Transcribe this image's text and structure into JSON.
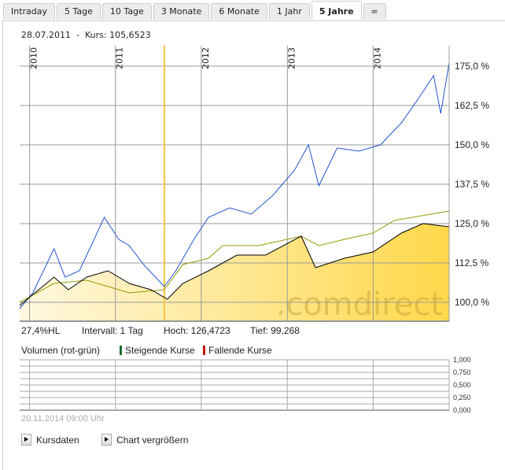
{
  "tabs": [
    {
      "label": "Intraday"
    },
    {
      "label": "5 Tage"
    },
    {
      "label": "10 Tage"
    },
    {
      "label": "3 Monate"
    },
    {
      "label": "6 Monate"
    },
    {
      "label": "1 Jahr"
    },
    {
      "label": "5 Jahre",
      "active": true
    },
    {
      "label": "∞"
    }
  ],
  "header": {
    "date": "28.07.2011",
    "separator": "-",
    "kurs_label": "Kurs:",
    "kurs_value": "105,6523"
  },
  "stats": {
    "hl": "27,4%HL",
    "interval": "Intervall: 1 Tag",
    "hoch": "Hoch: 126,4723",
    "tief": "Tief:  99,268"
  },
  "volume": {
    "title": "Volumen (rot-grün)",
    "rising": "Steigende Kurse",
    "falling": "Fallende Kurse",
    "rising_color": "#1a6e2e",
    "falling_color": "#cc1111",
    "ticks": [
      "1,000",
      "0,750",
      "0,500",
      "0,250",
      "0,000"
    ]
  },
  "timestamp": "20.11.2014 09:00 Uhr",
  "buttons": {
    "kursdaten": "Kursdaten",
    "vergroessern": "Chart vergrößern"
  },
  "watermark": ".comdirect",
  "chart_data": {
    "type": "line",
    "x_ticks": [
      "2010",
      "2011",
      "2012",
      "2013",
      "2014"
    ],
    "y_ticks": [
      "175,0 %",
      "162,5 %",
      "150,0 %",
      "137,5 %",
      "125,0 %",
      "112,5 %",
      "100,0 %"
    ],
    "ylim": [
      95,
      182
    ],
    "xlim": [
      "2009-11-20",
      "2014-11-20"
    ],
    "cursor_date": "2011-07-28",
    "grid": true,
    "series": [
      {
        "color": "#2255cc",
        "points": [
          [
            "2009-11-20",
            98
          ],
          [
            "2010-01-15",
            103
          ],
          [
            "2010-04-15",
            117
          ],
          [
            "2010-06-01",
            108
          ],
          [
            "2010-08-01",
            110
          ],
          [
            "2010-11-15",
            127
          ],
          [
            "2011-01-15",
            120
          ],
          [
            "2011-03-01",
            118
          ],
          [
            "2011-05-01",
            112
          ],
          [
            "2011-07-28",
            105
          ],
          [
            "2011-09-15",
            110
          ],
          [
            "2011-12-01",
            120
          ],
          [
            "2012-02-01",
            127
          ],
          [
            "2012-05-01",
            130
          ],
          [
            "2012-08-01",
            128
          ],
          [
            "2012-11-01",
            134
          ],
          [
            "2013-02-01",
            142
          ],
          [
            "2013-04-01",
            150
          ],
          [
            "2013-05-15",
            137
          ],
          [
            "2013-08-01",
            149
          ],
          [
            "2013-11-01",
            148
          ],
          [
            "2014-02-01",
            150
          ],
          [
            "2014-05-01",
            157
          ],
          [
            "2014-07-15",
            165
          ],
          [
            "2014-09-15",
            172
          ],
          [
            "2014-10-15",
            160
          ],
          [
            "2014-11-20",
            176
          ]
        ]
      },
      {
        "color": "#999900",
        "points": [
          [
            "2009-11-20",
            100
          ],
          [
            "2010-04-15",
            106
          ],
          [
            "2010-09-01",
            107
          ],
          [
            "2010-12-01",
            105
          ],
          [
            "2011-03-01",
            103
          ],
          [
            "2011-07-28",
            104
          ],
          [
            "2011-10-15",
            112
          ],
          [
            "2012-02-01",
            114
          ],
          [
            "2012-04-01",
            118
          ],
          [
            "2012-09-01",
            118
          ],
          [
            "2013-03-01",
            121
          ],
          [
            "2013-05-15",
            118
          ],
          [
            "2013-09-01",
            120
          ],
          [
            "2014-01-01",
            122
          ],
          [
            "2014-04-01",
            126
          ],
          [
            "2014-11-20",
            129
          ]
        ]
      },
      {
        "color": "#000000",
        "fill": "#ffd84a",
        "points": [
          [
            "2009-11-20",
            99
          ],
          [
            "2010-04-15",
            108
          ],
          [
            "2010-06-15",
            104
          ],
          [
            "2010-09-01",
            108
          ],
          [
            "2010-12-01",
            110
          ],
          [
            "2011-03-01",
            106
          ],
          [
            "2011-06-01",
            104
          ],
          [
            "2011-08-10",
            101
          ],
          [
            "2011-10-15",
            106
          ],
          [
            "2012-02-01",
            110
          ],
          [
            "2012-06-01",
            115
          ],
          [
            "2012-10-01",
            115
          ],
          [
            "2013-03-01",
            121
          ],
          [
            "2013-05-01",
            111
          ],
          [
            "2013-09-01",
            114
          ],
          [
            "2014-01-01",
            116
          ],
          [
            "2014-05-01",
            122
          ],
          [
            "2014-08-01",
            125
          ],
          [
            "2014-11-20",
            124
          ]
        ]
      }
    ]
  }
}
